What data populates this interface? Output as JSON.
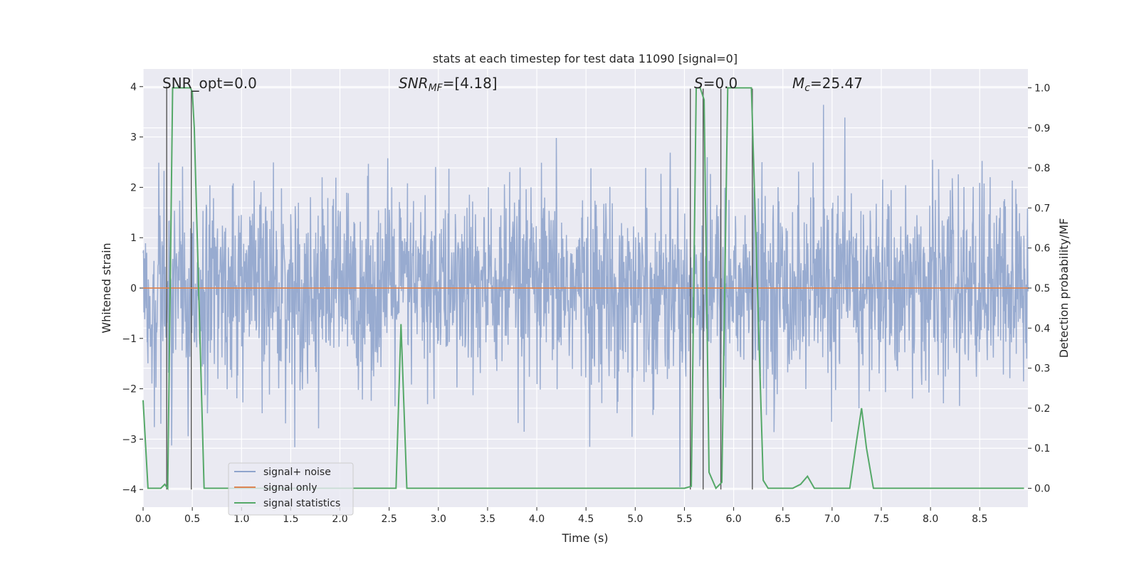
{
  "chart_data": {
    "type": "line",
    "title": "stats at each timestep for test data 11090 [signal=0]",
    "xlabel": "Time (s)",
    "ylabel": "Whitened strain",
    "y2label": "Detection probability/MF",
    "xlim": [
      0,
      8.99
    ],
    "ylim": [
      -4.35,
      4.35
    ],
    "y2lim": [
      -0.047,
      1.047
    ],
    "xticks": [
      0.0,
      0.5,
      1.0,
      1.5,
      2.0,
      2.5,
      3.0,
      3.5,
      4.0,
      4.5,
      5.0,
      5.5,
      6.0,
      6.5,
      7.0,
      7.5,
      8.0,
      8.5
    ],
    "xtick_labels": [
      "0.0",
      "0.5",
      "1.0",
      "1.5",
      "2.0",
      "2.5",
      "3.0",
      "3.5",
      "4.0",
      "4.5",
      "5.0",
      "5.5",
      "6.0",
      "6.5",
      "7.0",
      "7.5",
      "8.0",
      "8.5"
    ],
    "yticks": [
      -4,
      -3,
      -2,
      -1,
      0,
      1,
      2,
      3,
      4
    ],
    "ytick_labels": [
      "−4",
      "−3",
      "−2",
      "−1",
      "0",
      "1",
      "2",
      "3",
      "4"
    ],
    "y2ticks": [
      0.0,
      0.1,
      0.2,
      0.3,
      0.4,
      0.5,
      0.6,
      0.7,
      0.8,
      0.9,
      1.0
    ],
    "y2tick_labels": [
      "0.0",
      "0.1",
      "0.2",
      "0.3",
      "0.4",
      "0.5",
      "0.6",
      "0.7",
      "0.8",
      "0.9",
      "1.0"
    ],
    "grid": true,
    "legend_position": "lower-left",
    "annotations": {
      "snr_opt": "SNR_opt=0.0",
      "snr_mf_main": "SNR",
      "snr_mf_sub": "MF",
      "snr_mf_value": "=[4.18]",
      "s_main": "S",
      "s_value": "=0.0",
      "mc_main": "M",
      "mc_sub": "c",
      "mc_value": "=25.47"
    },
    "series": [
      {
        "name": "signal+ noise",
        "color": "#8fa4cc",
        "axis": "left",
        "kind": "noise",
        "approx_envelope": {
          "typical_abs": 1.6,
          "peak_max": 3.96,
          "peak_min": -3.95
        }
      },
      {
        "name": "signal only",
        "color": "#dd8452",
        "axis": "left",
        "x": [
          0,
          8.99
        ],
        "y": [
          0,
          0
        ]
      },
      {
        "name": "signal statistics",
        "color": "#55a868",
        "axis": "right",
        "x": [
          0.0,
          0.05,
          0.18,
          0.22,
          0.25,
          0.3,
          0.48,
          0.5,
          0.52,
          0.62,
          0.7,
          2.5,
          2.57,
          2.62,
          2.68,
          2.75,
          5.0,
          5.5,
          5.57,
          5.62,
          5.66,
          5.7,
          5.75,
          5.82,
          5.86,
          5.88,
          5.94,
          6.18,
          6.3,
          6.35,
          6.6,
          6.68,
          6.75,
          6.82,
          7.18,
          7.25,
          7.3,
          7.35,
          7.42,
          8.95
        ],
        "y": [
          0.22,
          0.0,
          0.0,
          0.01,
          0.0,
          1.0,
          1.0,
          0.99,
          0.9,
          0.0,
          0.0,
          0.0,
          0.0,
          0.41,
          0.0,
          0.0,
          0.0,
          0.0,
          0.005,
          1.0,
          1.0,
          0.97,
          0.04,
          0.0,
          0.01,
          0.015,
          1.0,
          1.0,
          0.02,
          0.0,
          0.0,
          0.01,
          0.03,
          0.0,
          0.0,
          0.12,
          0.2,
          0.1,
          0.0,
          0.0
        ]
      }
    ],
    "event_markers": {
      "color": "#555555",
      "segments": [
        {
          "x": 0.24,
          "y_from": -4.0,
          "y_to": 4.0
        },
        {
          "x": 0.49,
          "y_from": -4.0,
          "y_to": 3.96
        },
        {
          "x": 5.56,
          "y_from": -4.0,
          "y_to": 3.96
        },
        {
          "x": 5.69,
          "y_from": -4.0,
          "y_to": 3.96
        },
        {
          "x": 5.87,
          "y_from": -4.0,
          "y_to": 3.96
        },
        {
          "x": 6.19,
          "y_from": -4.0,
          "y_to": 3.96
        }
      ]
    }
  }
}
